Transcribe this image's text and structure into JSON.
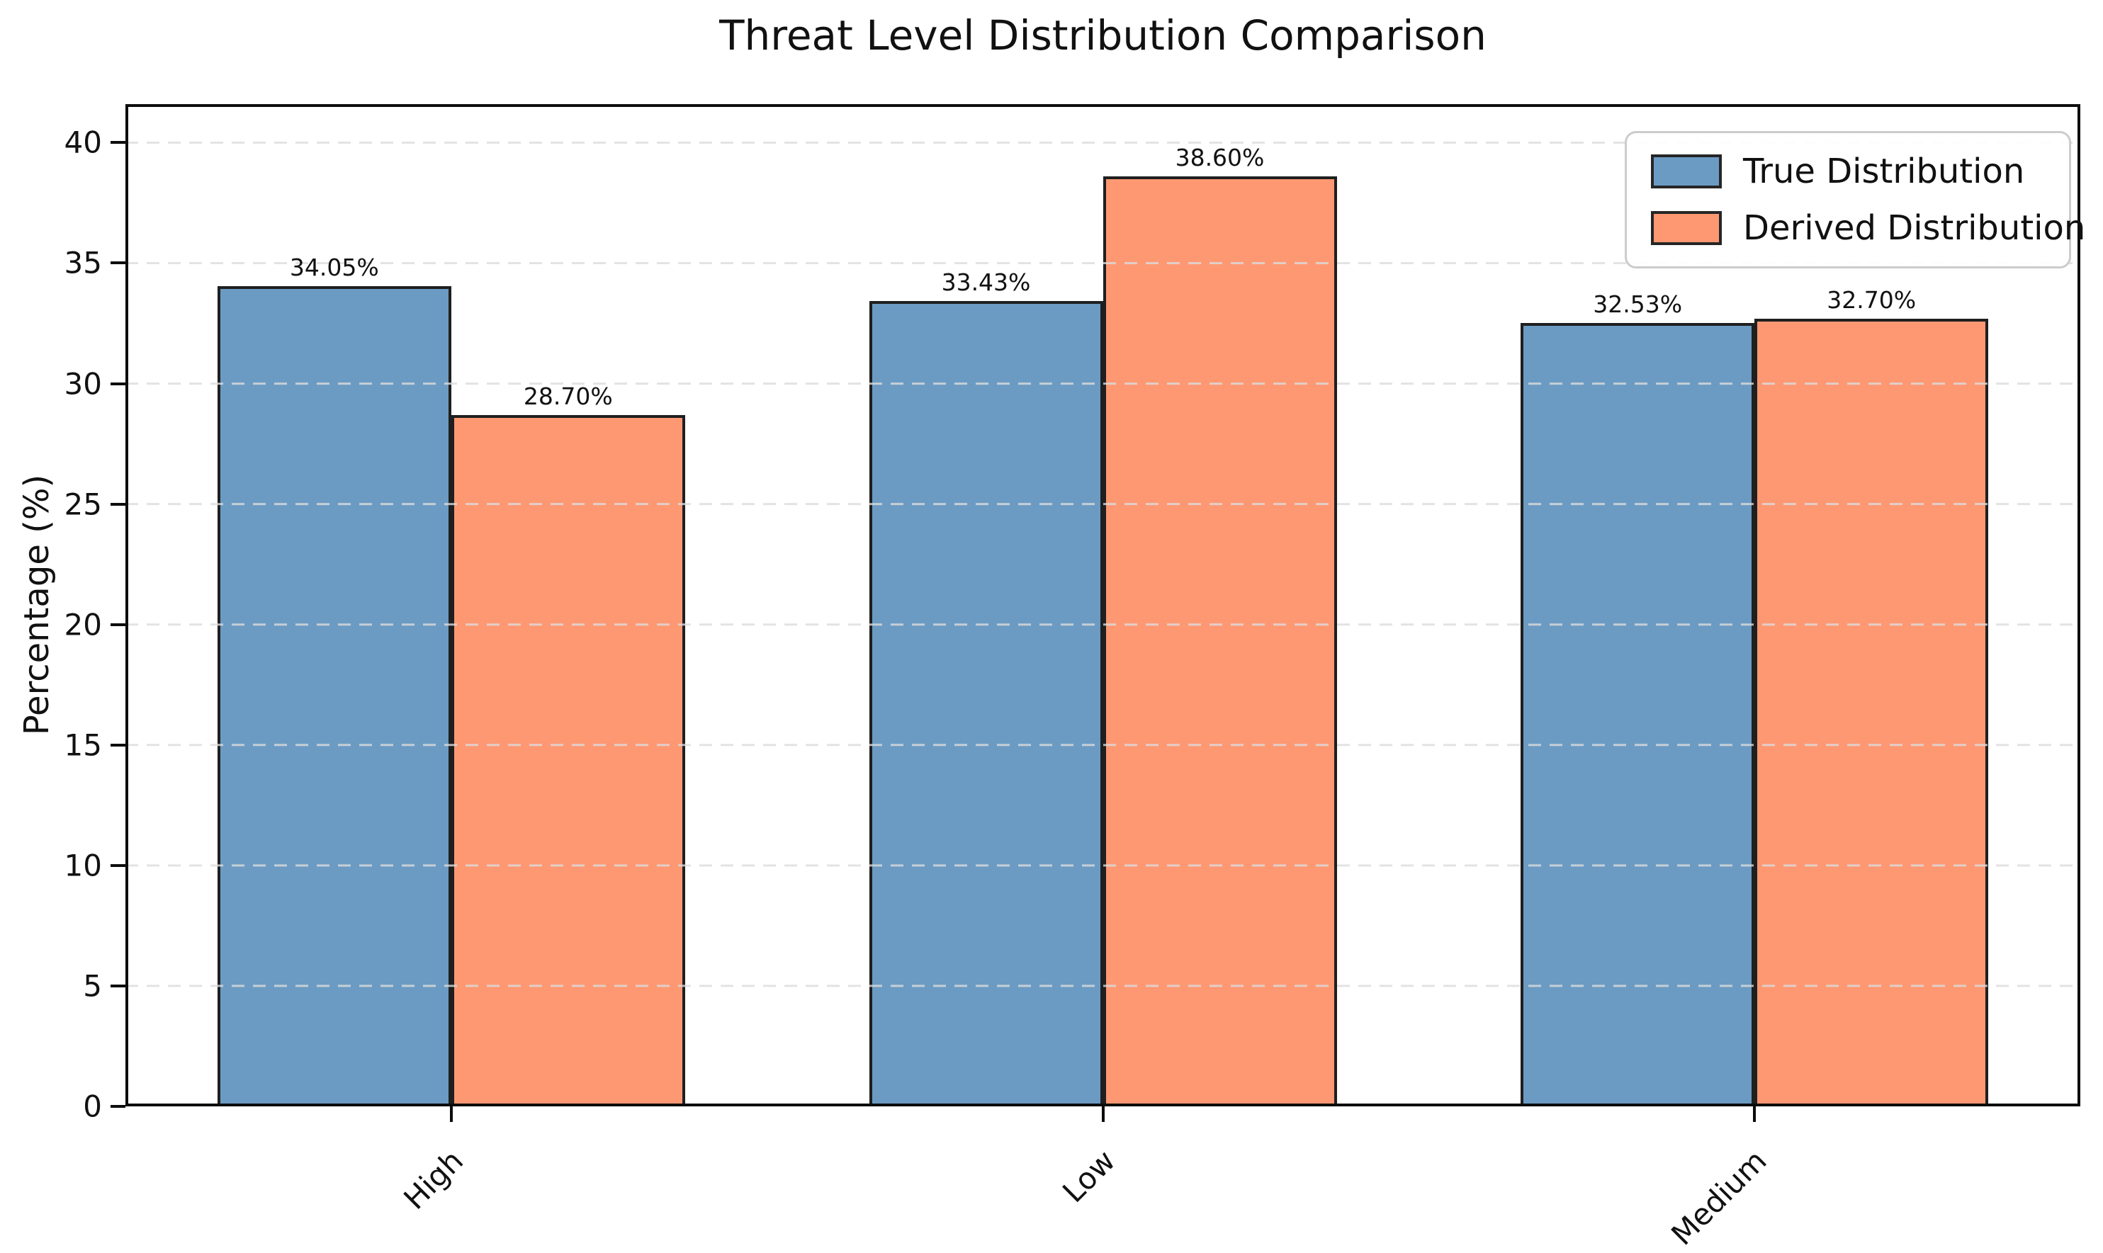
{
  "title": "Threat Level Distribution Comparison",
  "chart_data": {
    "type": "bar",
    "categories": [
      "High",
      "Low",
      "Medium"
    ],
    "series": [
      {
        "name": "True Distribution",
        "color": "#6B9BC3",
        "values": [
          34.05,
          33.43,
          32.53
        ],
        "value_labels": [
          "34.05%",
          "33.43%",
          "32.53%"
        ]
      },
      {
        "name": "Derived Distribution",
        "color": "#FD9873",
        "values": [
          28.7,
          38.6,
          32.7
        ],
        "value_labels": [
          "28.70%",
          "38.60%",
          "32.70%"
        ]
      }
    ],
    "xlabel": "",
    "ylabel": "Percentage (%)",
    "ylim": [
      0,
      41.6
    ],
    "yticks": [
      0,
      5,
      10,
      15,
      20,
      25,
      30,
      35,
      40
    ],
    "grid": "dashed-horizontal",
    "grid_on": true,
    "legend_position": "upper-right",
    "bar_edge_color": "#1f1f1f",
    "grid_color": "#dcdcdc",
    "spine_color": "#0d0d0d",
    "text_color": "#111111"
  }
}
